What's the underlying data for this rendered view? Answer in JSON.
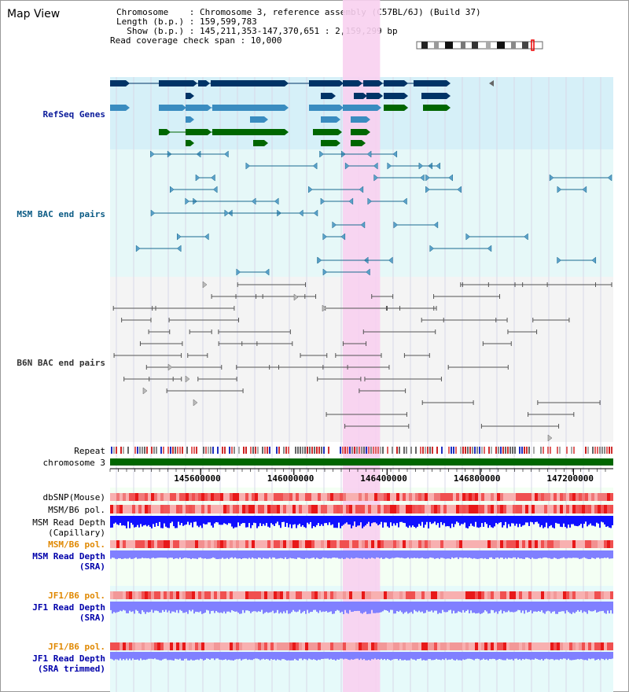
{
  "page": {
    "title": "Map View"
  },
  "info": {
    "line1": "Chromosome    : Chromosome 3, reference assembly (C57BL/6J) (Build 37)",
    "line2": "Length (b.p.) : 159,599,783",
    "line3": "  Show (b.p.) : 145,211,353-147,370,651 : 2,159,299 bp",
    "line4": "Read coverage check span : 10,000"
  },
  "tracks": {
    "refseq": "RefSeq Genes",
    "msm_bac": "MSM BAC end pairs",
    "b6n_bac": "B6N BAC end pairs",
    "repeat": "Repeat",
    "chromosome": "chromosome 3",
    "dbsnp": "dbSNP(Mouse)",
    "msm_pol": "MSM/B6 pol.",
    "msm_depth_cap": "MSM Read Depth",
    "msm_depth_cap2": "(Capillary)",
    "msm_pol_sra": "MSM/B6 pol.",
    "msm_depth_sra": "MSM Read Depth",
    "msm_depth_sra2": "(SRA)",
    "jf1_pol": "JF1/B6 pol.",
    "jf1_depth": "JF1 Read Depth",
    "jf1_depth2": "(SRA)",
    "jf1_pol2": "JF1/B6 pol.",
    "jf1_depth_trim": "JF1 Read Depth",
    "jf1_depth_trim2": "(SRA trimmed)"
  },
  "axis": {
    "ticks": [
      "145600000",
      "146000000",
      "146400000",
      "146800000",
      "147200000"
    ],
    "tick_values": [
      145600000,
      146000000,
      146400000,
      146800000,
      147200000
    ],
    "range": [
      145211353,
      147370651
    ]
  },
  "selection": {
    "start": 146210000,
    "end": 146370000
  },
  "colors": {
    "refseq_bg": "#d6f0f8",
    "msm_bg": "#e6f8f8",
    "b6n_bg": "#f4f4f4",
    "selection": "#f8d0f0",
    "gene_dark": "#003366",
    "gene_mid": "#3a8cc0",
    "gene_green": "#006600",
    "msm_label": "#0a5a84",
    "msm_line": "#1a6a90",
    "b6n_label": "#333333",
    "b6n_line": "#555555",
    "pol_label": "#e08800",
    "depth_label": "#0000aa",
    "chrom": "#006600",
    "depth_dark": "#1010ff",
    "depth_light": "#8080ff"
  }
}
